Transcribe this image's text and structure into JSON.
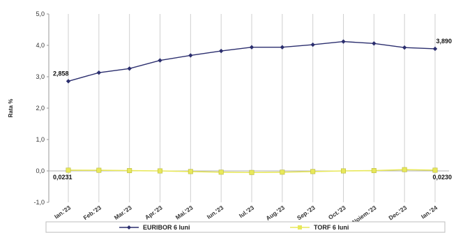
{
  "chart_data": {
    "type": "line",
    "categories": [
      "Ian.'23",
      "Feb.'23",
      "Mar.'23",
      "Apr.'23",
      "Mai.'23",
      "Iun.'23",
      "Iul.'23",
      "Aug.'23",
      "Sep.'23",
      "Oct.'23",
      "Noiem.'23",
      "Dec.'23",
      "Ian.'24"
    ],
    "series": [
      {
        "name": "EURIBOR 6 luni",
        "color": "#2b2e6e",
        "marker": "diamond",
        "values": [
          2.858,
          3.13,
          3.26,
          3.52,
          3.68,
          3.82,
          3.94,
          3.94,
          4.02,
          4.12,
          4.06,
          3.93,
          3.89
        ]
      },
      {
        "name": "TORF 6 luni",
        "color": "#e8e85a",
        "marker": "square",
        "values": [
          0.0231,
          0.02,
          0.01,
          0.0,
          -0.02,
          -0.04,
          -0.05,
          -0.04,
          -0.02,
          0.0,
          0.01,
          0.04,
          0.023
        ]
      }
    ],
    "annotations": [
      {
        "series": 0,
        "index": 0,
        "text": "2,858"
      },
      {
        "series": 0,
        "index": 12,
        "text": "3,890"
      },
      {
        "series": 1,
        "index": 0,
        "text": "0,0231"
      },
      {
        "series": 1,
        "index": 12,
        "text": "0,0230"
      }
    ],
    "ylabel": "Rata %",
    "yticks": [
      "-1,0",
      "0,0",
      "1,0",
      "2,0",
      "3,0",
      "4,0",
      "5,0"
    ],
    "ylim": [
      -1,
      5
    ],
    "grid": "vertical",
    "legend_position": "bottom"
  }
}
